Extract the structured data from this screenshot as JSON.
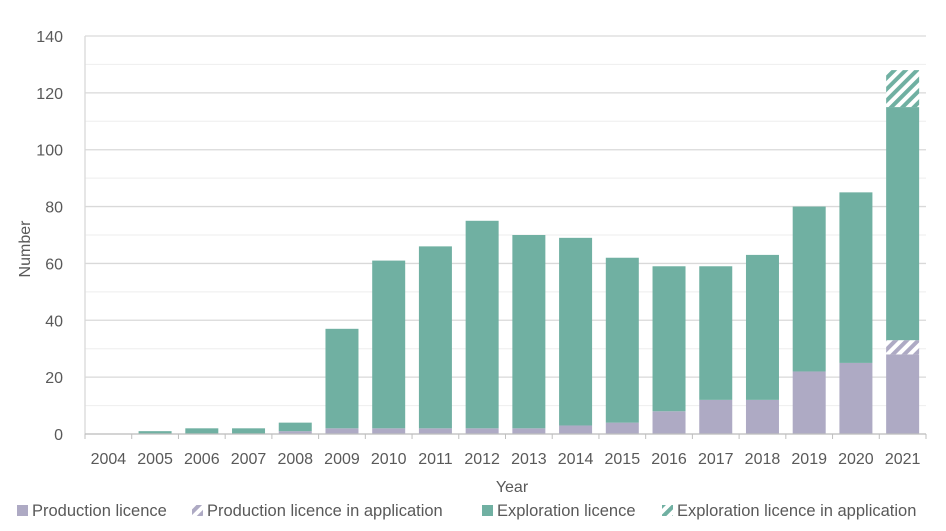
{
  "chart_data": {
    "type": "bar",
    "stacked": true,
    "title": "",
    "xlabel": "Year",
    "ylabel": "Number",
    "ylim": [
      0,
      140
    ],
    "yticks": [
      0,
      20,
      40,
      60,
      80,
      100,
      120,
      140
    ],
    "grid": true,
    "legend_position": "bottom",
    "categories": [
      "2004",
      "2005",
      "2006",
      "2007",
      "2008",
      "2009",
      "2010",
      "2011",
      "2012",
      "2013",
      "2014",
      "2015",
      "2016",
      "2017",
      "2018",
      "2019",
      "2020",
      "2021"
    ],
    "series": [
      {
        "name": "Production licence",
        "pattern": "solid",
        "color": "#aeaac4",
        "values": [
          0,
          0,
          0,
          0,
          1,
          2,
          2,
          2,
          2,
          2,
          3,
          4,
          8,
          12,
          12,
          22,
          25,
          28
        ]
      },
      {
        "name": "Production licence in application",
        "pattern": "hatch",
        "color": "#aeaac4",
        "values": [
          0,
          0,
          0,
          0,
          0,
          0,
          0,
          0,
          0,
          0,
          0,
          0,
          0,
          0,
          0,
          0,
          0,
          5
        ]
      },
      {
        "name": "Exploration licence",
        "pattern": "solid",
        "color": "#70b0a2",
        "values": [
          0,
          1,
          2,
          2,
          3,
          35,
          59,
          64,
          73,
          68,
          66,
          58,
          51,
          47,
          51,
          58,
          60,
          82
        ]
      },
      {
        "name": "Exploration licence in application",
        "pattern": "hatch",
        "color": "#70b0a2",
        "values": [
          0,
          0,
          0,
          0,
          0,
          0,
          0,
          0,
          0,
          0,
          0,
          0,
          0,
          0,
          0,
          0,
          0,
          13
        ]
      }
    ]
  }
}
